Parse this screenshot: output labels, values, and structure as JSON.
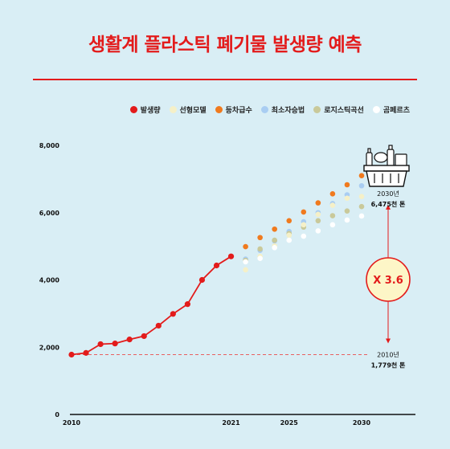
{
  "title": "생활계 플라스틱 폐기물 발생량 예측",
  "colors": {
    "accent": "#e31b1b",
    "background": "#d9eef5"
  },
  "legend": [
    {
      "label": "발생량",
      "color": "#e31b1b"
    },
    {
      "label": "선형모델",
      "color": "#f5f0c8"
    },
    {
      "label": "등차급수",
      "color": "#f07a1e"
    },
    {
      "label": "최소자승법",
      "color": "#a9cdf2"
    },
    {
      "label": "로지스틱곡선",
      "color": "#c9c99a"
    },
    {
      "label": "곰페르츠",
      "color": "#ffffff"
    }
  ],
  "annotations": {
    "y2030_year": "2030년",
    "y2030_value": "6,475천 톤",
    "y2010_year": "2010년",
    "y2010_value": "1,779천 톤",
    "ratio": "X 3.6",
    "basket_icon": "recycling-basket-icon"
  },
  "chart_data": {
    "type": "line",
    "title": "생활계 플라스틱 폐기물 발생량 예측",
    "ylim": [
      0,
      8000
    ],
    "xlim": [
      2010,
      2032
    ],
    "y_ticks": [
      "0",
      "2,000",
      "4,000",
      "6,000",
      "8,000"
    ],
    "y_tick_values": [
      0,
      2000,
      4000,
      6000,
      8000
    ],
    "x_ticks": [
      "2010",
      "2021",
      "2025",
      "2030"
    ],
    "x_tick_values": [
      2010,
      2021,
      2025,
      2030
    ],
    "grid": false,
    "series": [
      {
        "name": "발생량",
        "style": "line",
        "color": "#e31b1b",
        "x": [
          2010,
          2011,
          2012,
          2013,
          2014,
          2015,
          2016,
          2017,
          2018,
          2019,
          2020,
          2021
        ],
        "values": [
          1779,
          1830,
          2090,
          2110,
          2230,
          2330,
          2640,
          2990,
          3280,
          4000,
          4430,
          4700
        ]
      },
      {
        "name": "등차급수",
        "style": "dots",
        "color": "#f07a1e",
        "x": [
          2022,
          2023,
          2024,
          2025,
          2026,
          2027,
          2028,
          2029,
          2030
        ],
        "values": [
          4990,
          5260,
          5510,
          5760,
          6020,
          6290,
          6560,
          6830,
          7100
        ]
      },
      {
        "name": "최소자승법",
        "style": "dots",
        "color": "#a9cdf2",
        "x": [
          2022,
          2023,
          2024,
          2025,
          2026,
          2027,
          2028,
          2029,
          2030
        ],
        "values": [
          4620,
          4880,
          5160,
          5440,
          5730,
          6000,
          6270,
          6530,
          6800
        ]
      },
      {
        "name": "로지스틱곡선",
        "style": "dots",
        "color": "#c9c99a",
        "x": [
          2022,
          2023,
          2024,
          2025,
          2026,
          2027,
          2028,
          2029,
          2030
        ],
        "values": [
          4580,
          4920,
          5180,
          5380,
          5570,
          5760,
          5910,
          6050,
          6180
        ]
      },
      {
        "name": "선형모델",
        "style": "dots",
        "color": "#f5f0c8",
        "x": [
          2022,
          2023,
          2024,
          2025,
          2026,
          2027,
          2028,
          2029,
          2030
        ],
        "values": [
          4300,
          4700,
          5010,
          5330,
          5640,
          5950,
          6220,
          6430,
          6480
        ]
      },
      {
        "name": "곰페르츠",
        "style": "dots",
        "color": "#ffffff",
        "x": [
          2022,
          2023,
          2024,
          2025,
          2026,
          2027,
          2028,
          2029,
          2030
        ],
        "values": [
          4540,
          4640,
          4960,
          5180,
          5300,
          5460,
          5640,
          5780,
          5900
        ]
      }
    ],
    "baseline": {
      "x": 2010,
      "value": 1779
    }
  }
}
